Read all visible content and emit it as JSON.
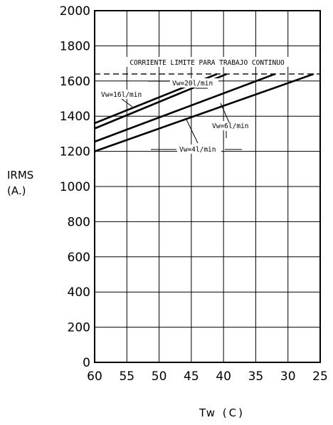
{
  "chart_data": {
    "type": "line",
    "title": "",
    "xlabel": "Tw (C)",
    "ylabel_line1": "IRMS",
    "ylabel_line2": "(A.)",
    "xlim": [
      60,
      25
    ],
    "ylim": [
      0,
      2000
    ],
    "x_reversed": true,
    "x_ticks": [
      60,
      55,
      50,
      45,
      40,
      35,
      30,
      25
    ],
    "y_ticks": [
      0,
      200,
      400,
      600,
      800,
      1000,
      1200,
      1400,
      1600,
      1800,
      2000
    ],
    "grid": true,
    "legend": "none",
    "limit_line": {
      "value": 1640,
      "label": "CORRIENTE LIMITE PARA TRABAJO CONTINUO",
      "style": "dashed"
    },
    "series": [
      {
        "name": "Vw=20l/min",
        "x": [
          60,
          41
        ],
        "y": [
          1360,
          1640
        ]
      },
      {
        "name": "Vw=16l/min",
        "x": [
          60,
          39.5
        ],
        "y": [
          1330,
          1640
        ]
      },
      {
        "name": "Vw=6l/min",
        "x": [
          60,
          32
        ],
        "y": [
          1255,
          1640
        ]
      },
      {
        "name": "Vw=4l/min",
        "x": [
          60,
          26
        ],
        "y": [
          1200,
          1640
        ]
      }
    ]
  }
}
